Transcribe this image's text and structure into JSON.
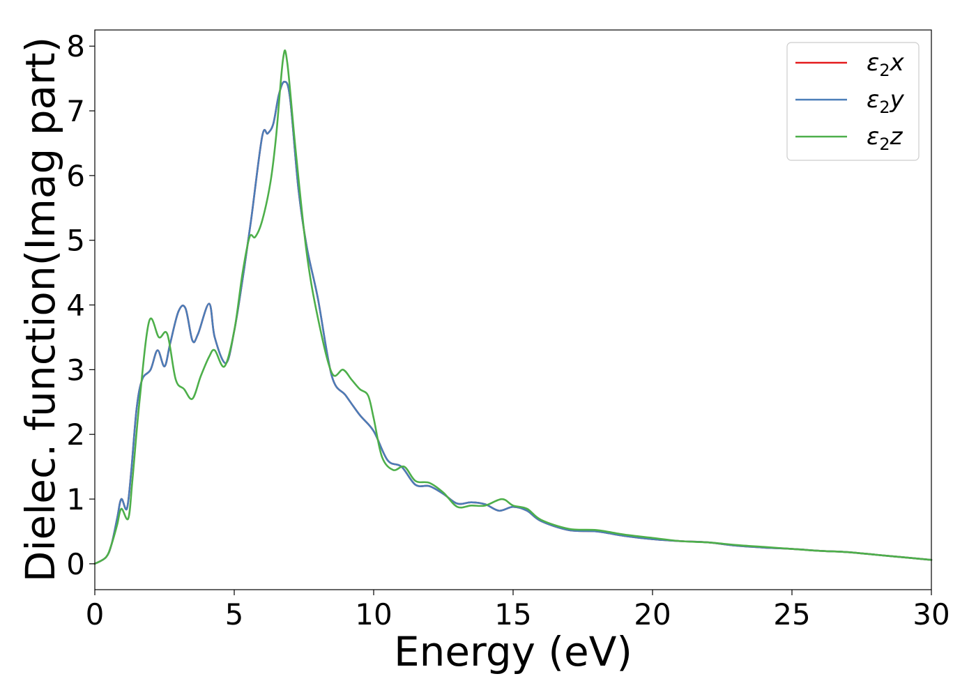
{
  "chart_data": {
    "type": "line",
    "title": "",
    "xlabel": "Energy (eV)",
    "ylabel": "Dielec. function(Imag part)",
    "xlim": [
      0,
      30
    ],
    "ylim": [
      -0.4,
      8.25
    ],
    "xticks": [
      0,
      5,
      10,
      15,
      20,
      25,
      30
    ],
    "yticks": [
      0,
      1,
      2,
      3,
      4,
      5,
      6,
      7,
      8
    ],
    "grid": false,
    "legend_position": "top-right",
    "series": [
      {
        "name": "ε2x",
        "legend_base": "ε",
        "legend_sub": "2",
        "legend_var": "x",
        "color": "#e41a1c",
        "x": [
          0,
          0.4,
          0.6,
          0.8,
          0.95,
          1.15,
          1.3,
          1.5,
          1.7,
          2.0,
          2.25,
          2.5,
          2.7,
          3.0,
          3.25,
          3.5,
          3.7,
          4.1,
          4.3,
          4.7,
          5.0,
          5.3,
          5.6,
          6.0,
          6.2,
          6.4,
          6.6,
          6.8,
          7.0,
          7.3,
          7.6,
          8.0,
          8.5,
          9.0,
          9.5,
          10.0,
          10.5,
          11.0,
          11.5,
          12.0,
          12.5,
          13.0,
          13.5,
          14.0,
          14.5,
          15.0,
          15.5,
          16.0,
          17.0,
          18.0,
          19.0,
          20.0,
          21.0,
          22.0,
          23.0,
          24.0,
          25.0,
          26.0,
          27.0,
          28.0,
          29.0,
          30.0
        ],
        "y": [
          0,
          0.1,
          0.3,
          0.7,
          1.0,
          0.85,
          1.4,
          2.4,
          2.85,
          3.0,
          3.3,
          3.05,
          3.4,
          3.9,
          3.95,
          3.45,
          3.55,
          4.02,
          3.5,
          3.1,
          3.6,
          4.4,
          5.3,
          6.6,
          6.65,
          6.8,
          7.25,
          7.45,
          7.2,
          5.8,
          4.9,
          4.1,
          2.9,
          2.6,
          2.3,
          2.05,
          1.6,
          1.5,
          1.22,
          1.2,
          1.08,
          0.93,
          0.95,
          0.92,
          0.82,
          0.88,
          0.82,
          0.66,
          0.52,
          0.5,
          0.43,
          0.38,
          0.35,
          0.33,
          0.28,
          0.25,
          0.23,
          0.2,
          0.18,
          0.14,
          0.1,
          0.06
        ]
      },
      {
        "name": "ε2y",
        "legend_base": "ε",
        "legend_sub": "2",
        "legend_var": "y",
        "color": "#4a7db8",
        "x": [
          0,
          0.4,
          0.6,
          0.8,
          0.95,
          1.15,
          1.3,
          1.5,
          1.7,
          2.0,
          2.25,
          2.5,
          2.7,
          3.0,
          3.25,
          3.5,
          3.7,
          4.1,
          4.3,
          4.7,
          5.0,
          5.3,
          5.6,
          6.0,
          6.2,
          6.4,
          6.6,
          6.8,
          7.0,
          7.3,
          7.6,
          8.0,
          8.5,
          9.0,
          9.5,
          10.0,
          10.5,
          11.0,
          11.5,
          12.0,
          12.5,
          13.0,
          13.5,
          14.0,
          14.5,
          15.0,
          15.5,
          16.0,
          17.0,
          18.0,
          19.0,
          20.0,
          21.0,
          22.0,
          23.0,
          24.0,
          25.0,
          26.0,
          27.0,
          28.0,
          29.0,
          30.0
        ],
        "y": [
          0,
          0.1,
          0.3,
          0.7,
          1.0,
          0.85,
          1.4,
          2.4,
          2.85,
          3.0,
          3.3,
          3.05,
          3.4,
          3.9,
          3.95,
          3.45,
          3.55,
          4.02,
          3.5,
          3.1,
          3.6,
          4.4,
          5.3,
          6.6,
          6.65,
          6.8,
          7.25,
          7.45,
          7.2,
          5.8,
          4.9,
          4.1,
          2.9,
          2.6,
          2.3,
          2.05,
          1.6,
          1.5,
          1.22,
          1.2,
          1.08,
          0.93,
          0.95,
          0.92,
          0.82,
          0.88,
          0.82,
          0.66,
          0.52,
          0.5,
          0.43,
          0.38,
          0.35,
          0.33,
          0.28,
          0.25,
          0.23,
          0.2,
          0.18,
          0.14,
          0.1,
          0.06
        ]
      },
      {
        "name": "ε2z",
        "legend_base": "ε",
        "legend_sub": "2",
        "legend_var": "z",
        "color": "#4daf4a",
        "x": [
          0,
          0.4,
          0.6,
          0.8,
          0.95,
          1.2,
          1.35,
          1.6,
          1.95,
          2.3,
          2.6,
          2.9,
          3.2,
          3.5,
          3.8,
          4.1,
          4.3,
          4.65,
          5.0,
          5.3,
          5.55,
          5.75,
          6.0,
          6.3,
          6.5,
          6.75,
          6.9,
          7.2,
          7.6,
          8.0,
          8.5,
          8.9,
          9.2,
          9.5,
          9.8,
          10.0,
          10.3,
          10.7,
          11.1,
          11.5,
          12.0,
          12.5,
          13.0,
          13.5,
          14.0,
          14.6,
          15.0,
          15.5,
          16.0,
          17.0,
          18.0,
          19.0,
          20.0,
          21.0,
          22.0,
          23.0,
          24.0,
          25.0,
          26.0,
          27.0,
          28.0,
          29.0,
          30.0
        ],
        "y": [
          0,
          0.1,
          0.3,
          0.6,
          0.85,
          0.7,
          1.3,
          2.5,
          3.75,
          3.5,
          3.55,
          2.85,
          2.7,
          2.55,
          2.9,
          3.2,
          3.3,
          3.05,
          3.6,
          4.5,
          5.05,
          5.05,
          5.3,
          5.9,
          6.6,
          7.8,
          7.75,
          6.4,
          4.8,
          3.8,
          2.95,
          3.0,
          2.85,
          2.7,
          2.6,
          2.25,
          1.65,
          1.45,
          1.5,
          1.28,
          1.25,
          1.1,
          0.88,
          0.9,
          0.9,
          1.0,
          0.9,
          0.85,
          0.68,
          0.54,
          0.52,
          0.45,
          0.4,
          0.35,
          0.33,
          0.29,
          0.26,
          0.23,
          0.2,
          0.18,
          0.14,
          0.1,
          0.06
        ]
      }
    ]
  }
}
